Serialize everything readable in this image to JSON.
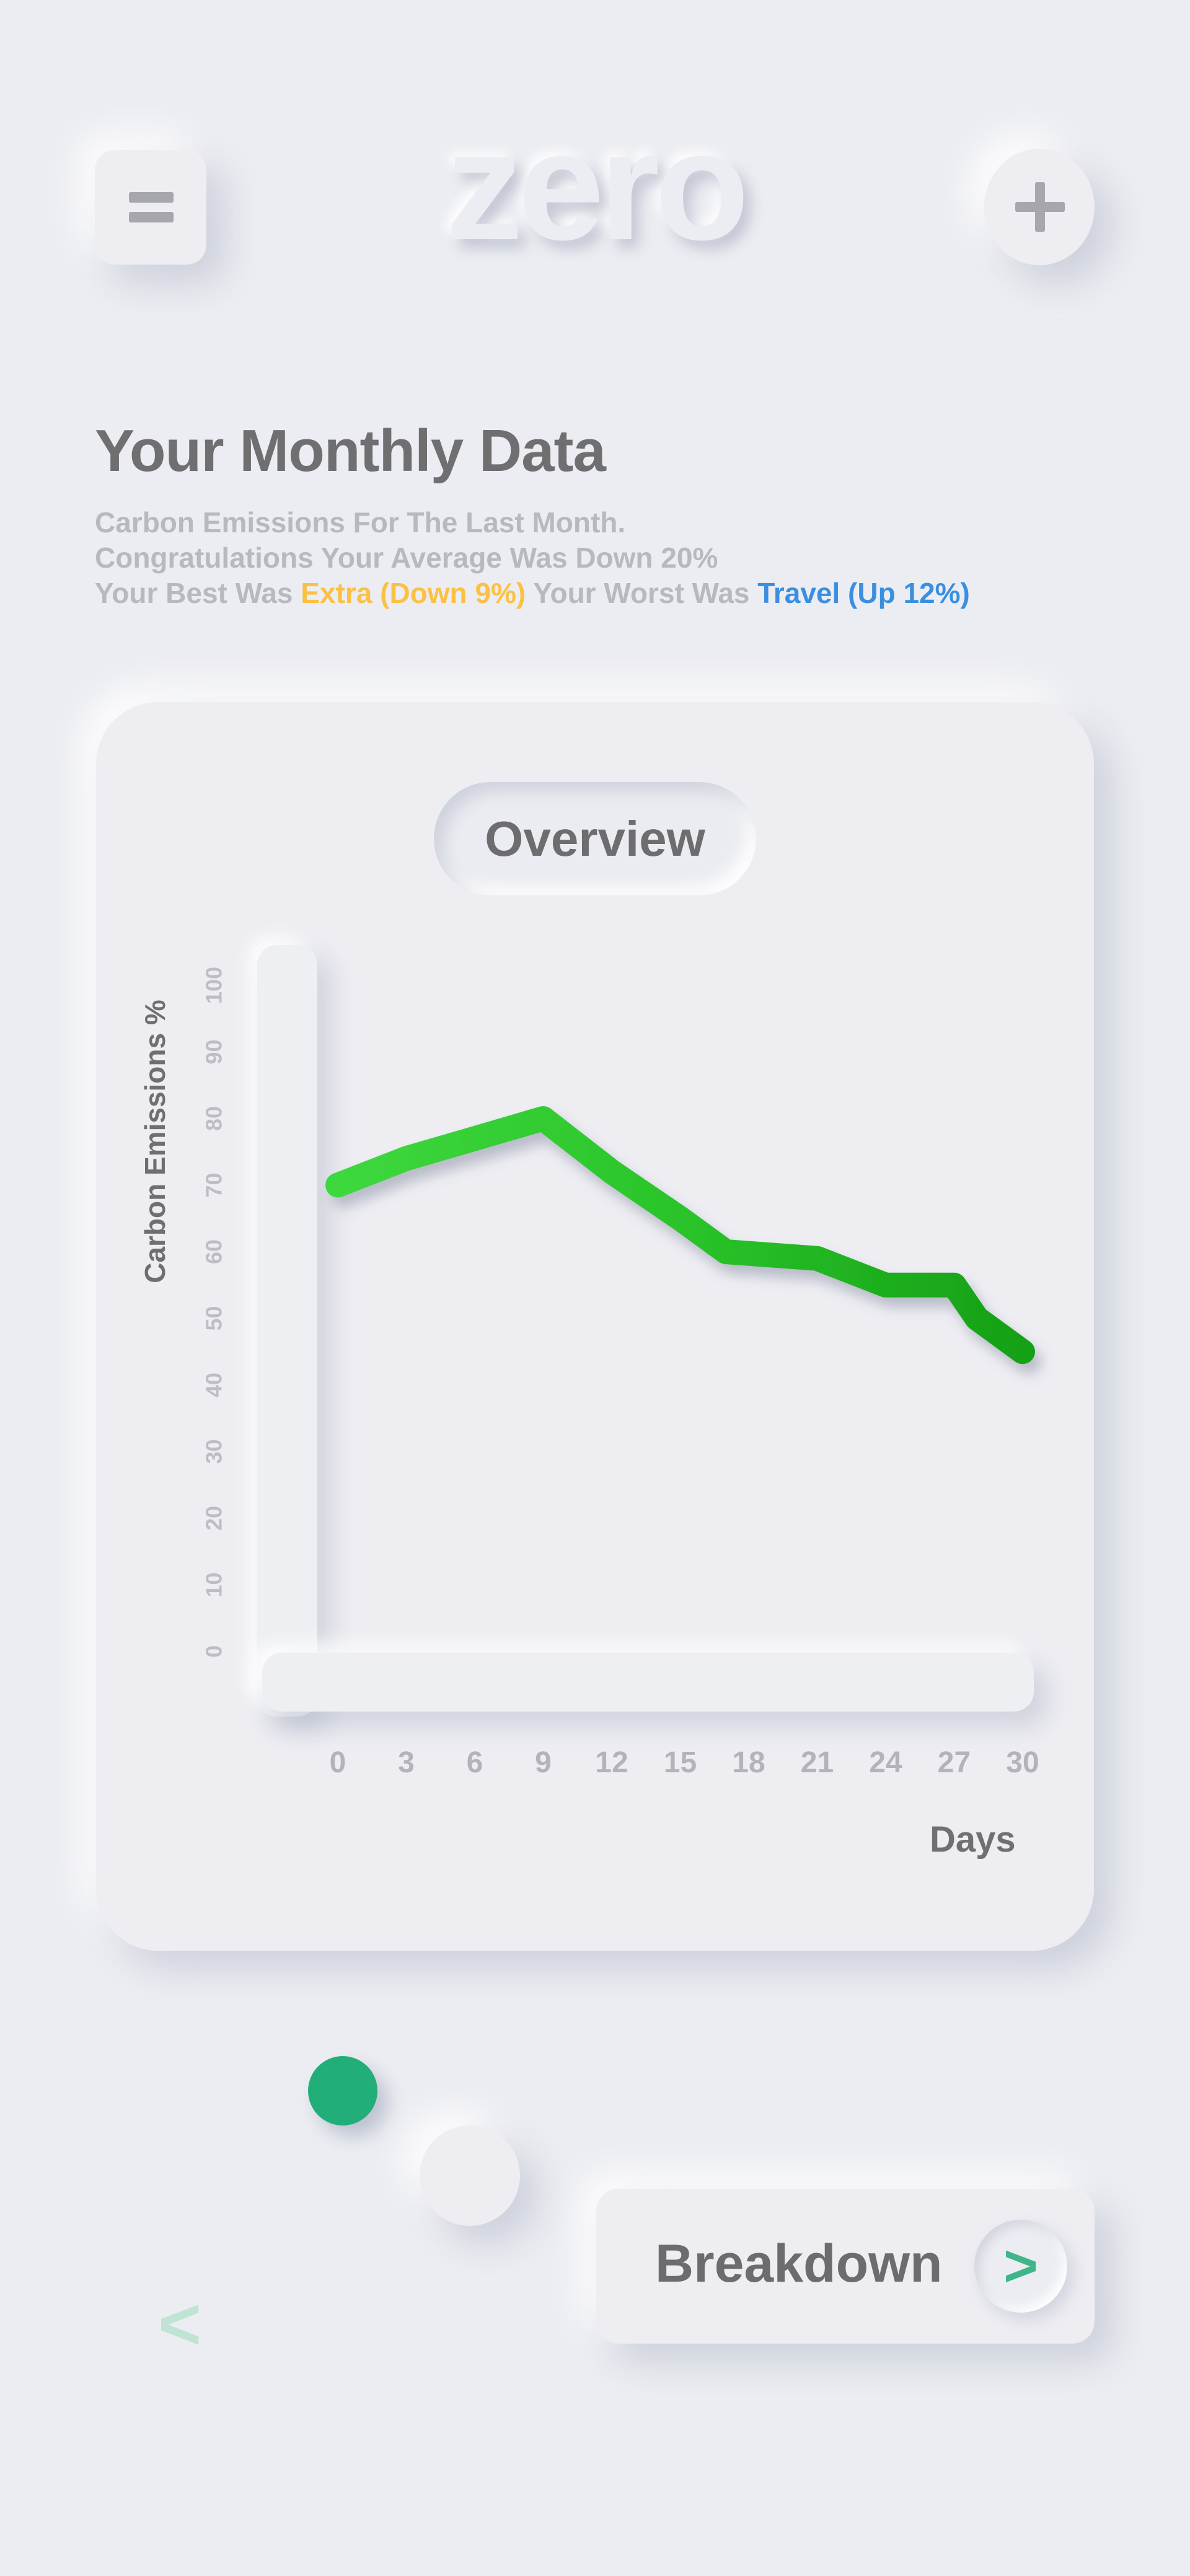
{
  "header": {
    "logo_text": "zero",
    "menu_icon": "hamburger-menu-icon",
    "add_icon": "plus-icon"
  },
  "summary": {
    "title": "Your Monthly Data",
    "line1": "Carbon Emissions For The Last Month.",
    "line2": "Congratulations Your Average Was Down 20%",
    "line3_prefix": "Your Best Was ",
    "best": "Extra (Down 9%)",
    "line3_middle": " Your Worst Was ",
    "worst": "Travel (Up 12%)"
  },
  "card": {
    "pill_label": "Overview"
  },
  "chart_data": {
    "type": "line",
    "title": "Overview",
    "xlabel": "Days",
    "ylabel": "Carbon Emissions %",
    "xlim": [
      0,
      30
    ],
    "ylim": [
      0,
      100
    ],
    "x_ticks": [
      0,
      3,
      6,
      9,
      12,
      15,
      18,
      21,
      24,
      27,
      30
    ],
    "y_ticks": [
      0,
      10,
      20,
      30,
      40,
      50,
      60,
      70,
      80,
      90,
      100
    ],
    "grid": false,
    "series": [
      {
        "color": "#2cc32c",
        "points": [
          [
            0,
            70
          ],
          [
            3,
            74
          ],
          [
            6,
            77
          ],
          [
            9,
            80
          ],
          [
            12,
            72
          ],
          [
            15,
            65
          ],
          [
            17,
            60
          ],
          [
            21,
            59
          ],
          [
            24,
            55
          ],
          [
            27,
            55
          ],
          [
            28,
            50
          ],
          [
            30,
            45
          ]
        ]
      }
    ]
  },
  "pagination": {
    "active_color": "#22ae78",
    "count": 2,
    "active_index": 0
  },
  "footer": {
    "breakdown_label": "Breakdown",
    "next_glyph": ">",
    "prev_glyph": "<"
  }
}
